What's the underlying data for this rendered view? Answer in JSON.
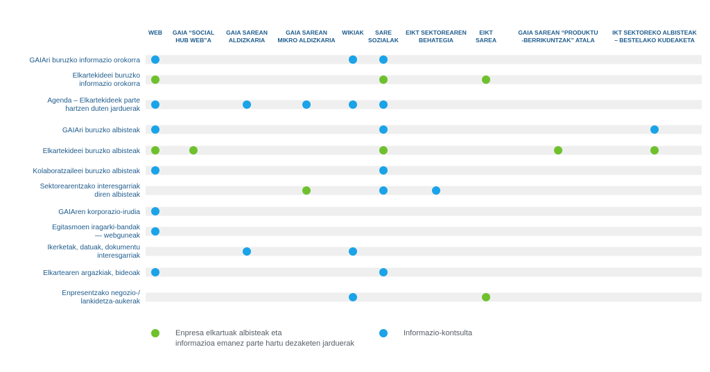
{
  "colors": {
    "green": "#6ec12d",
    "blue": "#1aa3e8",
    "row_band": "#efefef",
    "header_text": "#1e5b8c",
    "label_text": "#1e5b8c",
    "legend_text": "#555d66"
  },
  "chart_data": {
    "type": "table",
    "columns": [
      [
        "WEB"
      ],
      [
        "GAIA “SOCIAL",
        "HUB WEB”A"
      ],
      [
        "GAIA SAREAN",
        "ALDIZKARIA"
      ],
      [
        "GAIA SAREAN",
        "MIKRO ALDIZKARIA"
      ],
      [
        "WIKIAK"
      ],
      [
        "SARE",
        "SOZIALAK"
      ],
      [
        "EIKT SEKTOREAREN",
        "BEHATEGIA"
      ],
      [
        "EIKT",
        "SAREA"
      ],
      [
        "GAIA SAREAN “PRODUKTU",
        "-BERRIKUNTZAK” ATALA"
      ],
      [
        "IKT SEKTOREKO ALBISTEAK",
        "– BESTELAKO KUDEAKETA"
      ]
    ],
    "rows": [
      {
        "label": [
          "GAIAri buruzko informazio orokorra"
        ],
        "cells": [
          [
            "blue",
            0
          ],
          [
            "blue",
            4
          ],
          [
            "blue",
            5
          ]
        ]
      },
      {
        "label": [
          "Elkartekideei buruzko",
          "informazio orokorra"
        ],
        "cells": [
          [
            "green",
            0
          ],
          [
            "green",
            5
          ],
          [
            "green",
            7
          ]
        ]
      },
      {
        "label": [
          "Agenda – Elkartekideek parte",
          "hartzen duten jarduerak"
        ],
        "cells": [
          [
            "blue",
            0
          ],
          [
            "blue",
            2
          ],
          [
            "blue",
            3
          ],
          [
            "blue",
            4
          ],
          [
            "blue",
            5
          ]
        ]
      },
      {
        "label": [
          "GAIAri buruzko albisteak"
        ],
        "cells": [
          [
            "blue",
            0
          ],
          [
            "blue",
            5
          ],
          [
            "blue",
            9
          ]
        ]
      },
      {
        "label": [
          "Elkartekideei buruzko albisteak"
        ],
        "cells": [
          [
            "green",
            0
          ],
          [
            "green",
            1
          ],
          [
            "green",
            5
          ],
          [
            "green",
            8
          ],
          [
            "green",
            9
          ]
        ]
      },
      {
        "label": [
          "Kolaboratzaileei buruzko albisteak"
        ],
        "cells": [
          [
            "blue",
            0
          ],
          [
            "blue",
            5
          ]
        ]
      },
      {
        "label": [
          "Sektorearentzako interesgarriak",
          "diren albisteak"
        ],
        "cells": [
          [
            "green",
            3
          ],
          [
            "blue",
            5
          ],
          [
            "blue",
            6
          ]
        ]
      },
      {
        "label": [
          "GAIAren korporazio-irudia"
        ],
        "cells": [
          [
            "blue",
            0
          ]
        ]
      },
      {
        "label": [
          "Egitasmoen iragarki-bandak",
          "— webguneak"
        ],
        "cells": [
          [
            "blue",
            0
          ]
        ]
      },
      {
        "label": [
          "Ikerketak, datuak, dokumentu",
          "interesgarriak"
        ],
        "cells": [
          [
            "blue",
            2
          ],
          [
            "blue",
            4
          ]
        ]
      },
      {
        "label": [
          "Elkartearen argazkiak, bideoak"
        ],
        "cells": [
          [
            "blue",
            0
          ],
          [
            "blue",
            5
          ]
        ]
      },
      {
        "label": [
          "Enpresentzako negozio-/",
          "lankidetza-aukerak"
        ],
        "cells": [
          [
            "blue",
            4
          ],
          [
            "green",
            7
          ]
        ]
      }
    ]
  },
  "legend": {
    "green": {
      "line1": "Enpresa elkartuak albisteak eta",
      "line2": "informazioa emanez parte hartu dezaketen jarduerak"
    },
    "blue": {
      "line1": "Informazio-kontsulta"
    }
  }
}
